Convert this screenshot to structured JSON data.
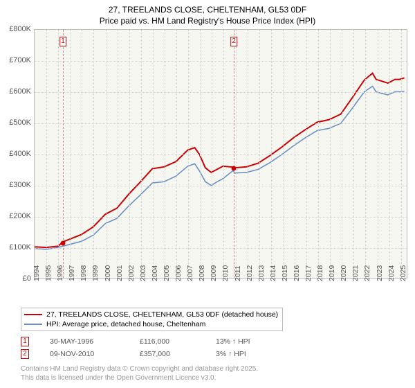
{
  "title_line1": "27, TREELANDS CLOSE, CHELTENHAM, GL53 0DF",
  "title_line2": "Price paid vs. HM Land Registry's House Price Index (HPI)",
  "chart": {
    "type": "line",
    "background_color": "#f7f7f1",
    "grid_color": "#d0d0d0",
    "border_color": "#bbbbbb",
    "x_min": 1994,
    "x_max": 2025.6,
    "x_tick_step": 1,
    "x_tick_labels": [
      "1994",
      "1995",
      "1996",
      "1997",
      "1998",
      "1999",
      "2000",
      "2001",
      "2002",
      "2003",
      "2004",
      "2005",
      "2006",
      "2007",
      "2008",
      "2009",
      "2010",
      "2011",
      "2012",
      "2013",
      "2014",
      "2015",
      "2016",
      "2017",
      "2018",
      "2019",
      "2020",
      "2021",
      "2022",
      "2023",
      "2024",
      "2025"
    ],
    "y_min": 0,
    "y_max": 800,
    "y_tick_step": 100,
    "y_tick_labels": [
      "£0",
      "£100K",
      "£200K",
      "£300K",
      "£400K",
      "£500K",
      "£600K",
      "£700K",
      "£800K"
    ],
    "series": [
      {
        "name": "27, TREELANDS CLOSE, CHELTENHAM, GL53 0DF (detached house)",
        "color": "#cc0000",
        "width": 2,
        "data": [
          [
            1994,
            100
          ],
          [
            1995,
            98
          ],
          [
            1996,
            102
          ],
          [
            1996.4,
            116
          ],
          [
            1997,
            125
          ],
          [
            1998,
            140
          ],
          [
            1999,
            165
          ],
          [
            2000,
            205
          ],
          [
            2001,
            225
          ],
          [
            2002,
            270
          ],
          [
            2003,
            310
          ],
          [
            2004,
            352
          ],
          [
            2005,
            358
          ],
          [
            2006,
            375
          ],
          [
            2007,
            412
          ],
          [
            2007.6,
            420
          ],
          [
            2008,
            398
          ],
          [
            2008.5,
            355
          ],
          [
            2009,
            340
          ],
          [
            2009.5,
            350
          ],
          [
            2010,
            360
          ],
          [
            2010.86,
            357
          ],
          [
            2011,
            355
          ],
          [
            2012,
            358
          ],
          [
            2013,
            370
          ],
          [
            2014,
            395
          ],
          [
            2015,
            422
          ],
          [
            2016,
            452
          ],
          [
            2017,
            478
          ],
          [
            2018,
            502
          ],
          [
            2019,
            510
          ],
          [
            2020,
            528
          ],
          [
            2021,
            582
          ],
          [
            2022,
            638
          ],
          [
            2022.7,
            660
          ],
          [
            2023,
            640
          ],
          [
            2024,
            628
          ],
          [
            2024.6,
            640
          ],
          [
            2025,
            640
          ],
          [
            2025.4,
            645
          ]
        ]
      },
      {
        "name": "HPI: Average price, detached house, Cheltenham",
        "color": "#6a90c4",
        "width": 1.6,
        "data": [
          [
            1994,
            95
          ],
          [
            1995,
            92
          ],
          [
            1996,
            98
          ],
          [
            1997,
            108
          ],
          [
            1998,
            118
          ],
          [
            1999,
            138
          ],
          [
            2000,
            175
          ],
          [
            2001,
            192
          ],
          [
            2002,
            232
          ],
          [
            2003,
            268
          ],
          [
            2004,
            306
          ],
          [
            2005,
            310
          ],
          [
            2006,
            328
          ],
          [
            2007,
            360
          ],
          [
            2007.6,
            368
          ],
          [
            2008,
            345
          ],
          [
            2008.5,
            310
          ],
          [
            2009,
            298
          ],
          [
            2009.5,
            310
          ],
          [
            2010,
            320
          ],
          [
            2010.86,
            346
          ],
          [
            2011,
            338
          ],
          [
            2012,
            340
          ],
          [
            2013,
            350
          ],
          [
            2014,
            372
          ],
          [
            2015,
            398
          ],
          [
            2016,
            426
          ],
          [
            2017,
            452
          ],
          [
            2018,
            475
          ],
          [
            2019,
            482
          ],
          [
            2020,
            498
          ],
          [
            2021,
            548
          ],
          [
            2022,
            600
          ],
          [
            2022.7,
            618
          ],
          [
            2023,
            600
          ],
          [
            2024,
            590
          ],
          [
            2024.6,
            600
          ],
          [
            2025,
            600
          ],
          [
            2025.4,
            602
          ]
        ]
      }
    ],
    "markers": [
      {
        "label": "1",
        "x": 1996.4,
        "y": 116,
        "color": "#cc0000"
      },
      {
        "label": "2",
        "x": 2010.86,
        "y": 357,
        "color": "#cc0000"
      }
    ]
  },
  "legend": [
    {
      "color": "#cc0000",
      "label": "27, TREELANDS CLOSE, CHELTENHAM, GL53 0DF (detached house)"
    },
    {
      "color": "#6a90c4",
      "label": "HPI: Average price, detached house, Cheltenham"
    }
  ],
  "sales": [
    {
      "badge": "1",
      "date": "30-MAY-1996",
      "price": "£116,000",
      "delta": "13% ↑ HPI"
    },
    {
      "badge": "2",
      "date": "09-NOV-2010",
      "price": "£357,000",
      "delta": "3% ↑ HPI"
    }
  ],
  "footer_line1": "Contains HM Land Registry data © Crown copyright and database right 2025.",
  "footer_line2": "This data is licensed under the Open Government Licence v3.0."
}
